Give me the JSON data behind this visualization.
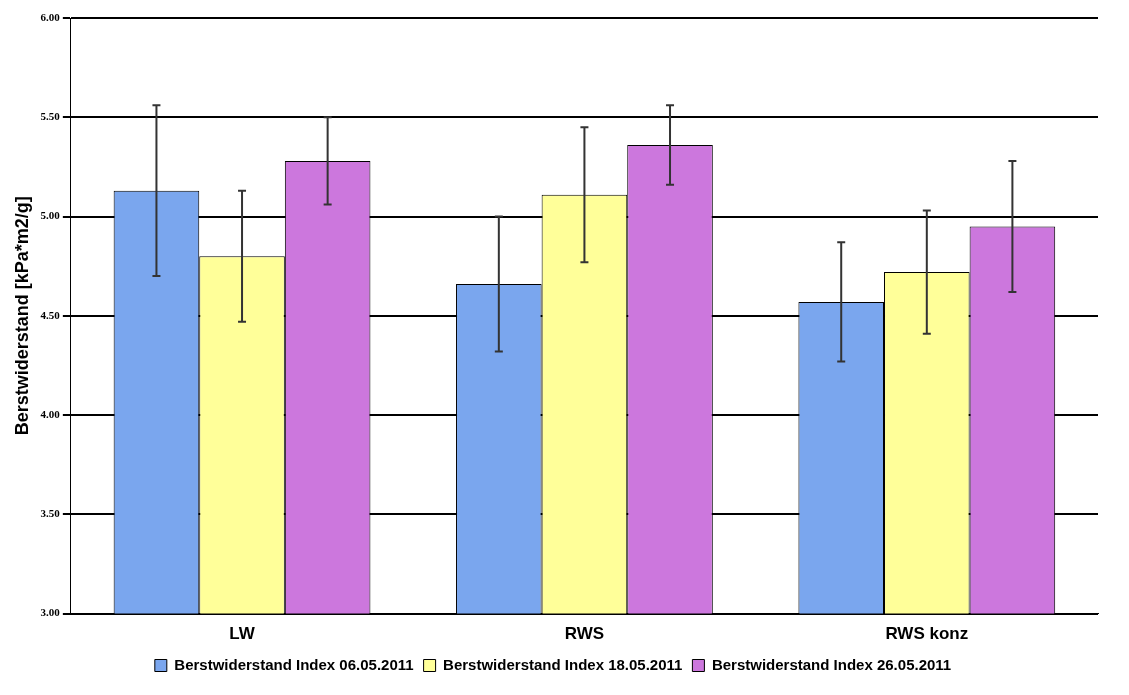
{
  "chart_data": {
    "type": "bar",
    "ylabel": "Berstwiderstand [kPa*m2/g]",
    "categories": [
      "LW",
      "RWS",
      "RWS konz"
    ],
    "series": [
      {
        "name": "Berstwiderstand Index 06.05.2011",
        "color": "#7aa6ee",
        "values": [
          5.13,
          4.66,
          4.57
        ],
        "errors": [
          0.43,
          0.34,
          0.3
        ]
      },
      {
        "name": "Berstwiderstand Index 18.05.2011",
        "color": "#ffff99",
        "values": [
          4.8,
          5.11,
          4.72
        ],
        "errors": [
          0.33,
          0.34,
          0.31
        ]
      },
      {
        "name": "Berstwiderstand Index 26.05.2011",
        "color": "#cc77dd",
        "values": [
          5.28,
          5.36,
          4.95
        ],
        "errors": [
          0.22,
          0.2,
          0.33
        ]
      }
    ],
    "ylim": [
      3,
      6
    ],
    "yticks": [
      {
        "value": 3,
        "label": "3.00"
      },
      {
        "value": 3.5,
        "label": "3.50"
      },
      {
        "value": 4,
        "label": "4.00"
      },
      {
        "value": 4.5,
        "label": "4.50"
      },
      {
        "value": 5,
        "label": "5.00"
      },
      {
        "value": 5.5,
        "label": "5.50"
      },
      {
        "value": 6,
        "label": "6.00"
      }
    ],
    "grid": "y",
    "legend": "bottom"
  }
}
